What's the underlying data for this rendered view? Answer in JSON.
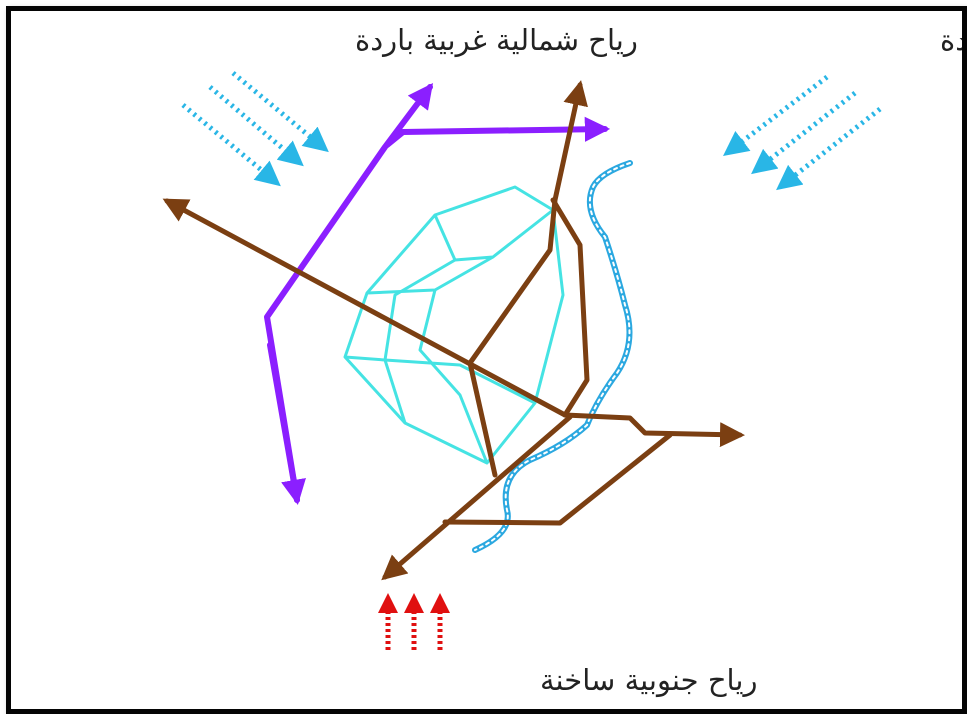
{
  "labels": {
    "northwest_winds": "رياح شمالية غربية باردة",
    "northeast_winds": "رياح شمالية شرقية باردة",
    "south_winds": "رياح جنوبية ساخنة"
  },
  "colors": {
    "cold_wind_arrows": "#29b6e6",
    "hot_wind_arrows": "#e01010",
    "purple_route": "#8b1fff",
    "brown_roads": "#7b3f12",
    "city_outline": "#45e3e3",
    "river": "#2ba8e0",
    "frame": "#050505"
  },
  "icons": {
    "northwest_winds": "dotted-arrow-down-right-icon",
    "northeast_winds": "dotted-arrow-down-left-icon",
    "south_winds": "dotted-arrow-up-icon"
  }
}
